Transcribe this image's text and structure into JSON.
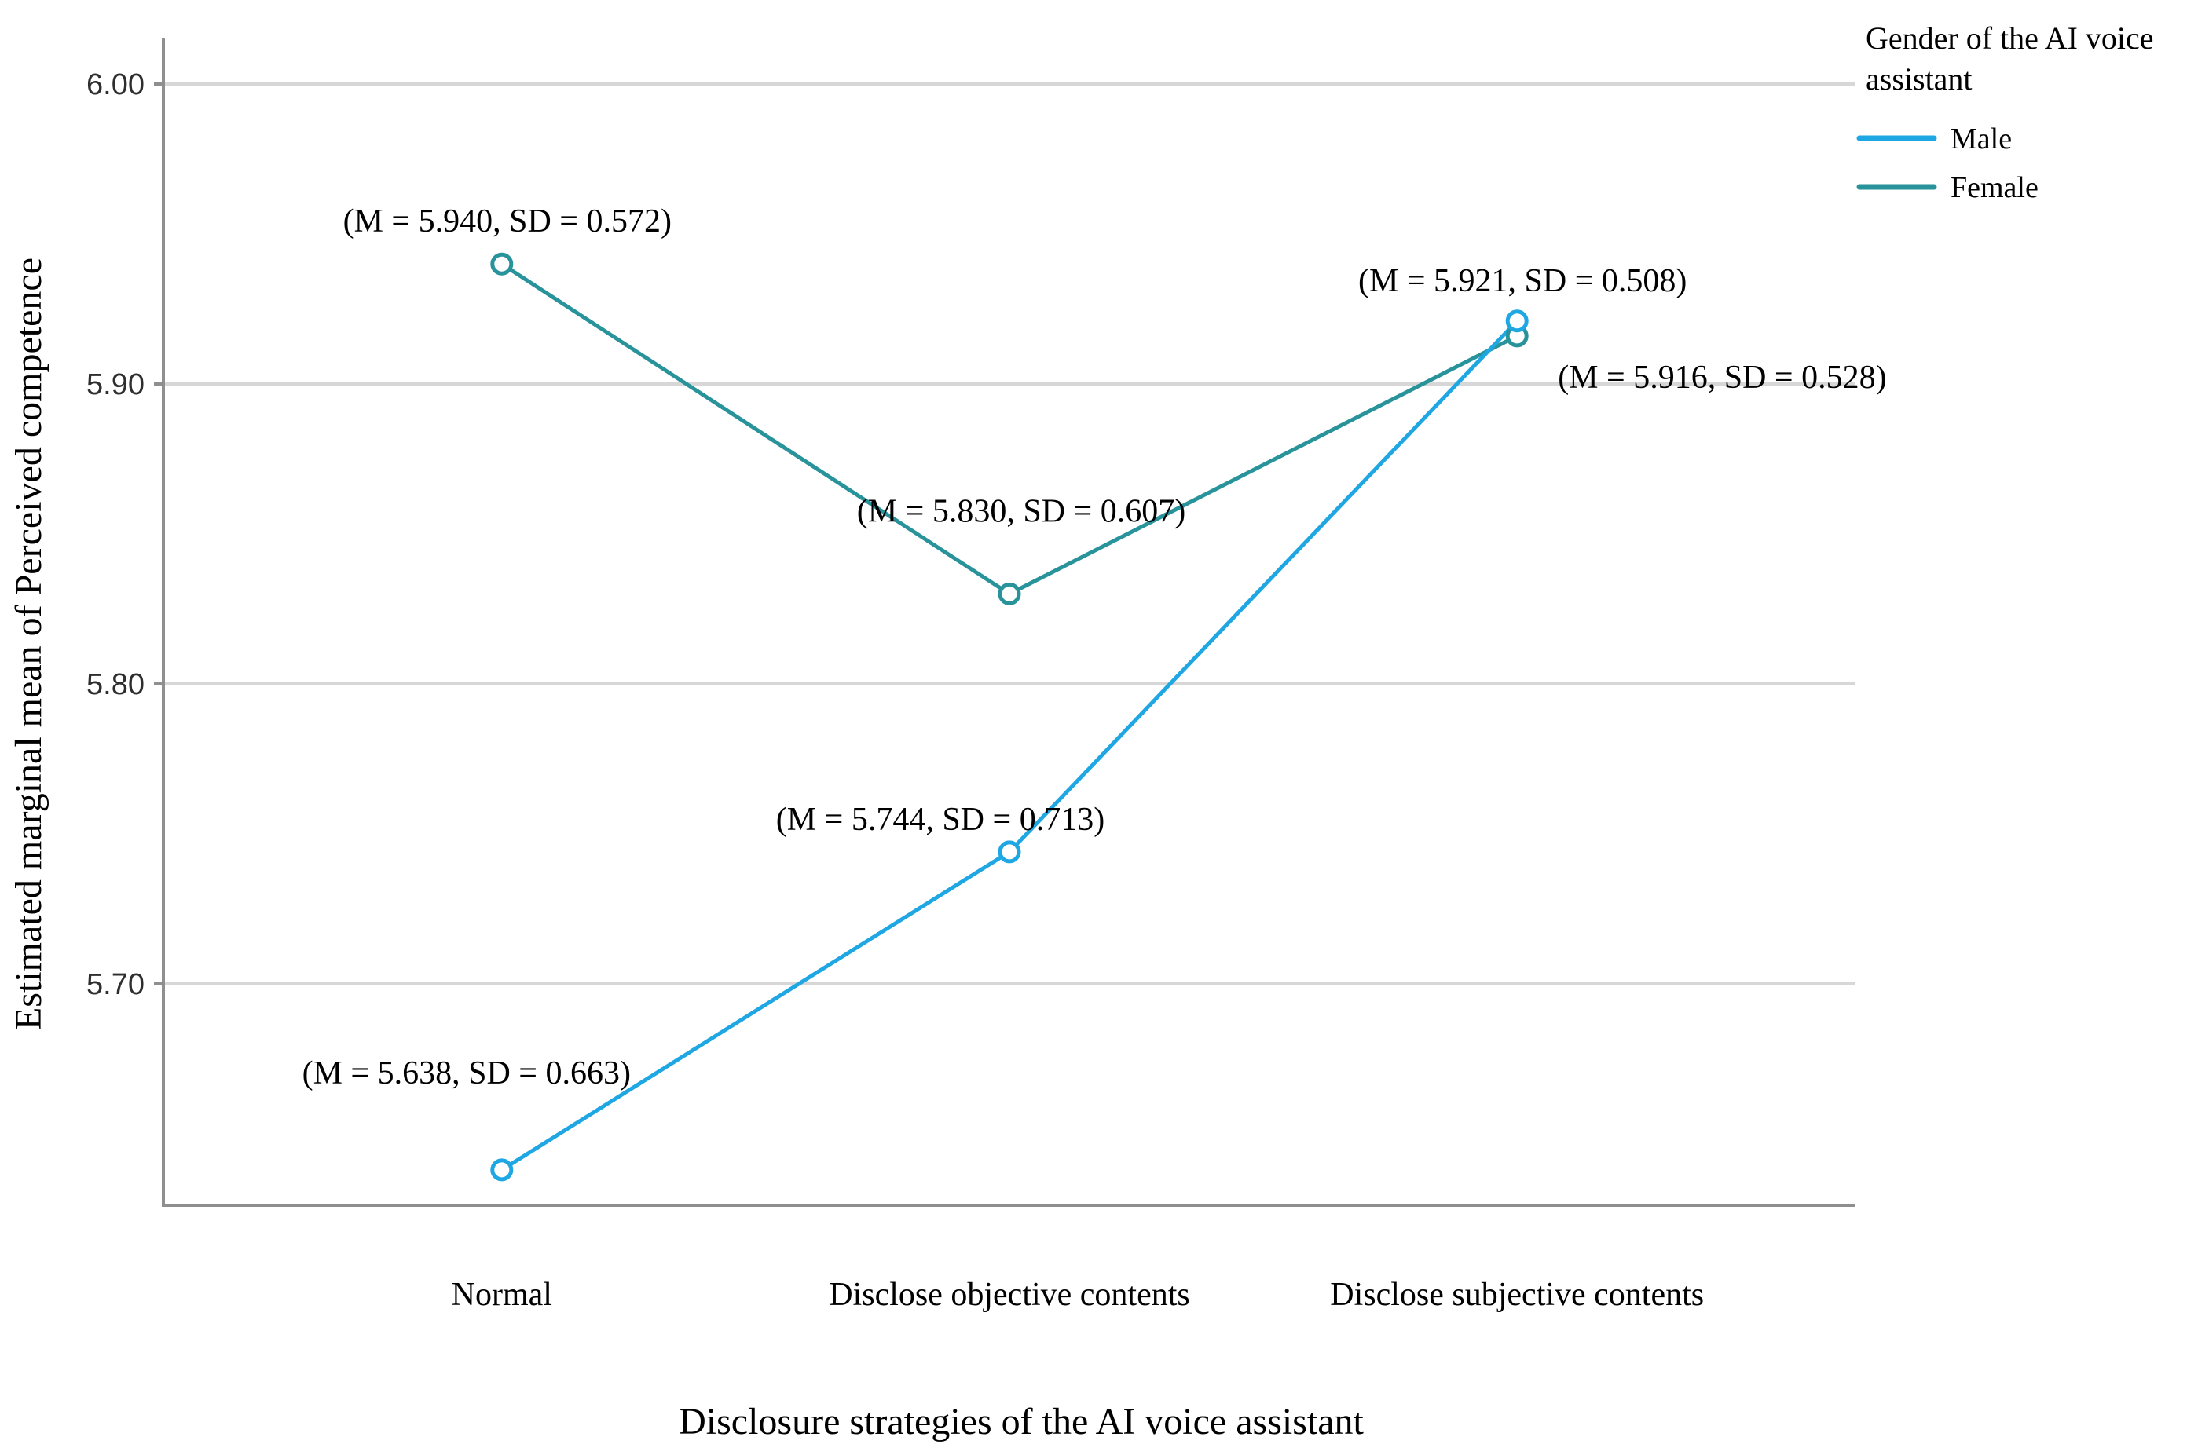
{
  "chart_data": {
    "type": "line",
    "title": "",
    "xlabel": "Disclosure strategies of the AI voice assistant",
    "ylabel": "Estimated marginal mean of Perceived competence",
    "categories": [
      "Normal",
      "Disclose objective contents",
      "Disclose subjective contents"
    ],
    "y_ticks": [
      {
        "label": "6.00",
        "value": 6.0
      },
      {
        "label": "5.90",
        "value": 5.9
      },
      {
        "label": "5.80",
        "value": 5.8
      },
      {
        "label": "5.70",
        "value": 5.7
      }
    ],
    "ylim": [
      5.626,
      6.016
    ],
    "grid": true,
    "legend": {
      "title": "Gender of the AI voice assistant",
      "title_lines": [
        "Gender of the AI voice",
        "assistant"
      ],
      "position": "top-right"
    },
    "series": [
      {
        "name": "Male",
        "color": "#1FA7E3",
        "values": [
          5.638,
          5.744,
          5.921
        ],
        "sd": [
          0.663,
          0.713,
          0.508
        ],
        "point_labels": [
          "(M = 5.638, SD = 0.663)",
          "(M = 5.744, SD = 0.713)",
          "(M = 5.921, SD = 0.508)"
        ]
      },
      {
        "name": "Female",
        "color": "#28939A",
        "values": [
          5.94,
          5.83,
          5.916
        ],
        "sd": [
          0.572,
          0.607,
          0.528
        ],
        "point_labels": [
          "(M = 5.940, SD = 0.572)",
          "(M = 5.830, SD = 0.607)",
          "(M = 5.916, SD = 0.528)"
        ]
      }
    ]
  },
  "colors": {
    "gridline": "#D7D7D7",
    "axis_line": "#8F8F8F",
    "tick_text": "#2e2e2e",
    "annotation_text": "#000000",
    "male_accent": "#1FA7E3",
    "female_accent": "#28939A"
  }
}
